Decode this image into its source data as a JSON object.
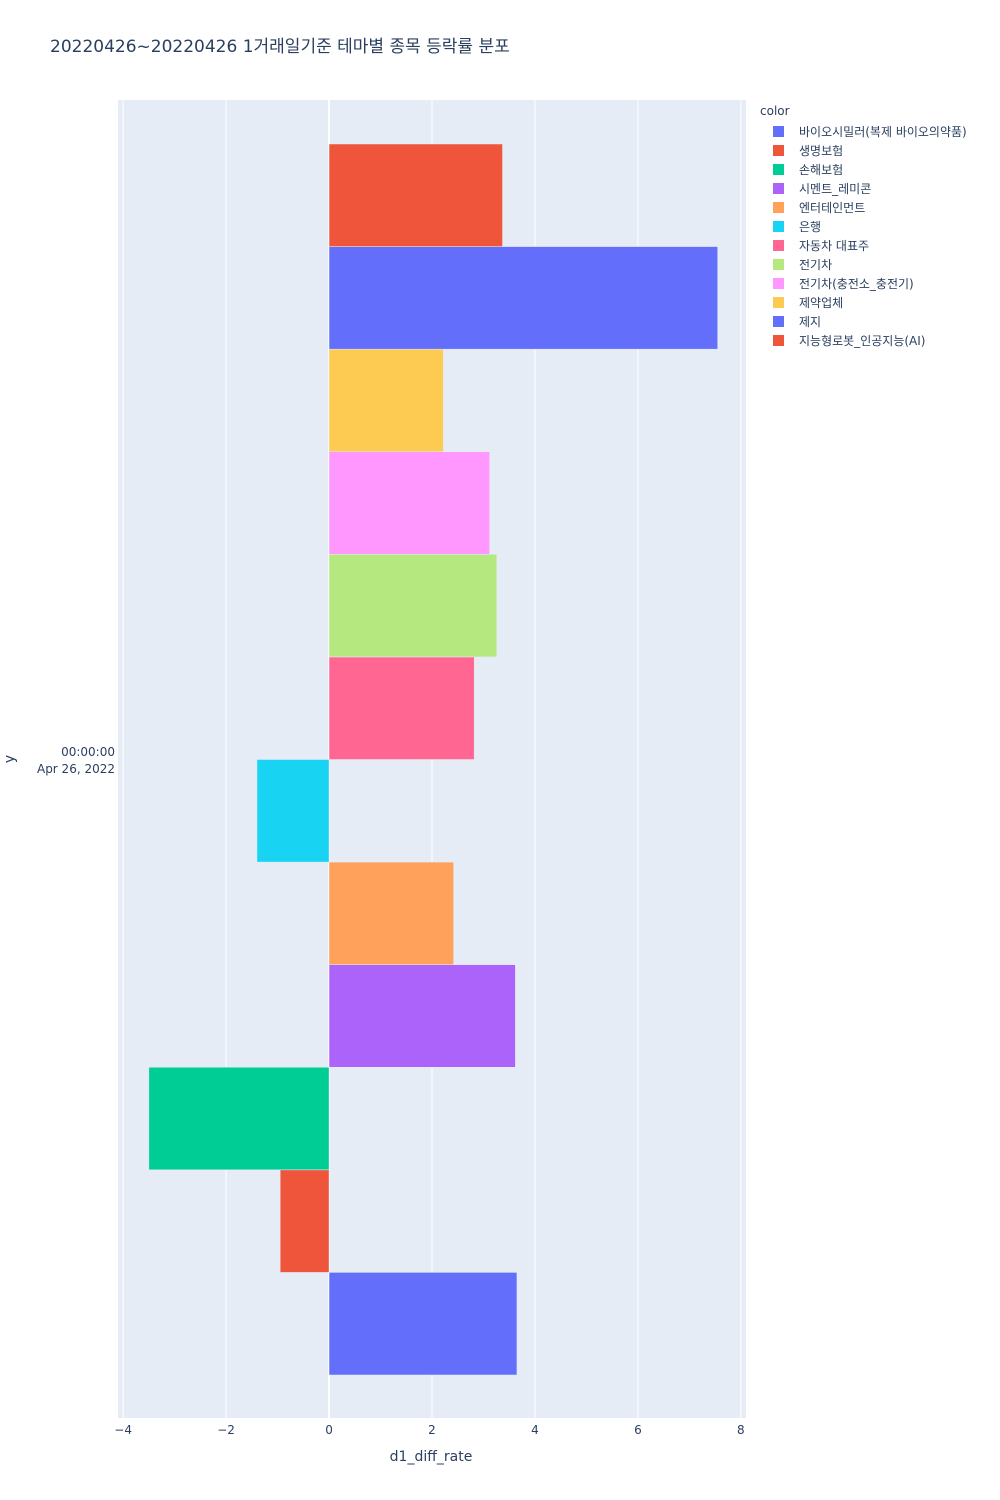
{
  "chart_data": {
    "type": "bar",
    "orientation": "horizontal",
    "title": "20220426~20220426 1거래일기준 테마별 종목 등락률 분포",
    "xlabel": "d1_diff_rate",
    "ylabel": "y",
    "y_category": [
      "00:00:00",
      "Apr 26, 2022"
    ],
    "xlim": [
      -4.1,
      8.1
    ],
    "x_ticks": [
      -4,
      -2,
      0,
      2,
      4,
      6,
      8
    ],
    "x_tick_labels": [
      "−4",
      "−2",
      "0",
      "2",
      "4",
      "6",
      "8"
    ],
    "grid": true,
    "legend_title": "color",
    "legend_position": "top-right",
    "series": [
      {
        "name": "바이오시밀러(복제 바이오의약품)",
        "value": 3.65,
        "color": "#636efa"
      },
      {
        "name": "생명보험",
        "value": -0.95,
        "color": "#EF553B"
      },
      {
        "name": "손해보험",
        "value": -3.5,
        "color": "#00cc96"
      },
      {
        "name": "시멘트_레미콘",
        "value": 3.62,
        "color": "#ab63fa"
      },
      {
        "name": "엔터테인먼트",
        "value": 2.42,
        "color": "#FFA15A"
      },
      {
        "name": "은행",
        "value": -1.4,
        "color": "#19d3f3"
      },
      {
        "name": "자동차 대표주",
        "value": 2.82,
        "color": "#FF6692"
      },
      {
        "name": "전기차",
        "value": 3.26,
        "color": "#B6E880"
      },
      {
        "name": "전기차(충전소_충전기)",
        "value": 3.12,
        "color": "#FF97FF"
      },
      {
        "name": "제약업체",
        "value": 2.22,
        "color": "#FECB52"
      },
      {
        "name": "제지",
        "value": 7.55,
        "color": "#636efa"
      },
      {
        "name": "지능형로봇_인공지능(AI)",
        "value": 3.37,
        "color": "#EF553B"
      }
    ]
  }
}
